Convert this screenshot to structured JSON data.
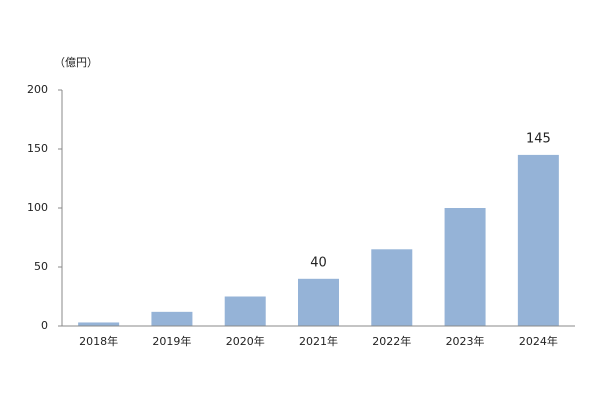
{
  "chart_data": {
    "type": "bar",
    "y_unit": "（億円）",
    "categories": [
      "2018年",
      "2019年",
      "2020年",
      "2021年",
      "2022年",
      "2023年",
      "2024年"
    ],
    "values": [
      3,
      12,
      25,
      40,
      65,
      100,
      145
    ],
    "value_labels": [
      null,
      null,
      null,
      "40",
      null,
      null,
      "145"
    ],
    "color": "#95b3d7",
    "ylim": [
      0,
      200
    ],
    "yticks": [
      0,
      50,
      100,
      150,
      200
    ],
    "grid": false
  }
}
